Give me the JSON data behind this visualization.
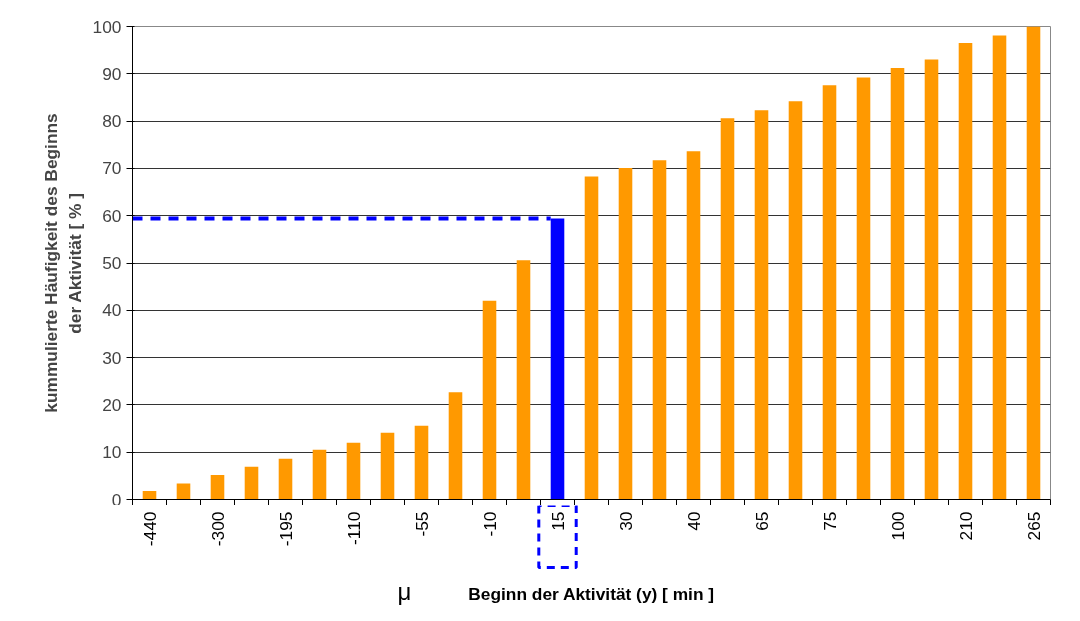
{
  "chart_data": {
    "type": "bar",
    "xlabel": "Beginn der Aktivität (y) [ min ]",
    "ylabel": "kummulierte Häufigkeit des Beginns\nder Aktivität [ % ]",
    "annotations": [
      "μ"
    ],
    "categories": [
      "-440",
      null,
      "-300",
      null,
      "-195",
      null,
      "-110",
      null,
      "-55",
      null,
      "-10",
      null,
      "15",
      null,
      "30",
      null,
      "40",
      null,
      "65",
      null,
      "75",
      null,
      "100",
      null,
      "210",
      null,
      "265"
    ],
    "values": [
      1.8,
      3.4,
      5.2,
      6.9,
      8.6,
      10.5,
      12.0,
      14.1,
      15.6,
      22.7,
      42.0,
      50.6,
      59.4,
      68.3,
      70.1,
      71.7,
      73.6,
      80.6,
      82.3,
      84.2,
      87.6,
      89.2,
      91.2,
      93.0,
      96.5,
      98.1,
      100
    ],
    "colors": [
      "#ff9900",
      "#ff9900",
      "#ff9900",
      "#ff9900",
      "#ff9900",
      "#ff9900",
      "#ff9900",
      "#ff9900",
      "#ff9900",
      "#ff9900",
      "#ff9900",
      "#ff9900",
      "#0000ff",
      "#ff9900",
      "#ff9900",
      "#ff9900",
      "#ff9900",
      "#ff9900",
      "#ff9900",
      "#ff9900",
      "#ff9900",
      "#ff9900",
      "#ff9900",
      "#ff9900",
      "#ff9900",
      "#ff9900",
      "#ff9900"
    ],
    "ylim": [
      0,
      100
    ],
    "yticks": [
      0,
      10,
      20,
      30,
      40,
      50,
      60,
      70,
      80,
      90,
      100
    ],
    "grid": "y",
    "ref_lines": [
      {
        "axis": "y",
        "value": 59.4,
        "color": "#0000ff",
        "line_style": "dashed"
      }
    ]
  }
}
